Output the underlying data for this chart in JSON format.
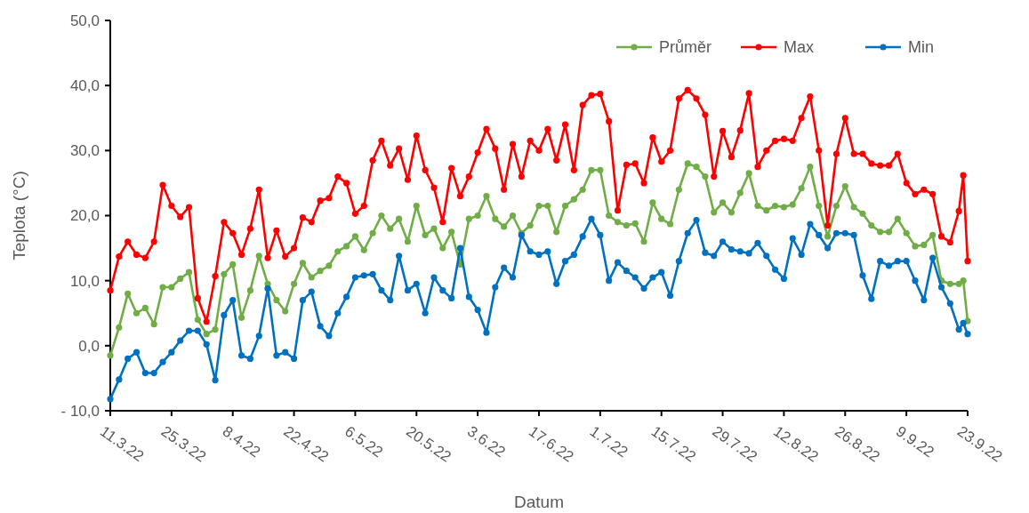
{
  "chart_data": {
    "type": "line",
    "xlabel": "Datum",
    "ylabel": "Teplota (°C)",
    "legend": "top right",
    "marker": "circle",
    "line_style": "solid",
    "x": [
      "--03-11",
      "--03-13",
      "--03-15",
      "--03-17",
      "--03-19",
      "--03-21",
      "--03-23",
      "--03-25",
      "--03-27",
      "--03-29",
      "--03-31",
      "--04-02",
      "--04-04",
      "--04-06",
      "--04-08",
      "--04-10",
      "--04-12",
      "--04-14",
      "--04-16",
      "--04-18",
      "--04-20",
      "--04-22",
      "--04-24",
      "--04-26",
      "--04-28",
      "--04-30",
      "--05-02",
      "--05-04",
      "--05-06",
      "--05-08",
      "--05-10",
      "--05-12",
      "--05-14",
      "--05-16",
      "--05-18",
      "--05-20",
      "--05-22",
      "--05-24",
      "--05-26",
      "--05-28",
      "--05-30",
      "--06-01",
      "--06-03",
      "--06-05",
      "--06-07",
      "--06-09",
      "--06-11",
      "--06-13",
      "--06-15",
      "--06-17",
      "--06-19",
      "--06-21",
      "--06-23",
      "--06-25",
      "--06-27",
      "--06-29",
      "--07-01",
      "--07-03",
      "--07-05",
      "--07-07",
      "--07-09",
      "--07-11",
      "--07-13",
      "--07-15",
      "--07-17",
      "--07-19",
      "--07-21",
      "--07-23",
      "--07-25",
      "--07-27",
      "--07-29",
      "--07-31",
      "--08-02",
      "--08-04",
      "--08-06",
      "--08-08",
      "--08-10",
      "--08-12",
      "--08-14",
      "--08-16",
      "--08-18",
      "--08-20",
      "--08-22",
      "--08-24",
      "--08-26",
      "--08-28",
      "--08-30",
      "--09-01",
      "--09-03",
      "--09-05",
      "--09-07",
      "--09-09",
      "--09-11",
      "--09-13",
      "--09-15",
      "--09-17",
      "--09-19",
      "--09-21",
      "--09-22",
      "--09-23"
    ],
    "series": [
      {
        "name": "Průměr",
        "color": "#70ad47",
        "values": [
          -1.5,
          2.8,
          8.0,
          5.0,
          5.8,
          3.3,
          9.0,
          9.0,
          10.3,
          11.3,
          4.0,
          1.8,
          2.5,
          11.0,
          12.5,
          4.3,
          8.5,
          13.8,
          9.5,
          7.0,
          5.3,
          9.5,
          12.7,
          10.5,
          11.5,
          12.3,
          14.5,
          15.3,
          16.8,
          14.7,
          17.3,
          20.0,
          18.0,
          19.5,
          16.0,
          21.5,
          17.0,
          18.0,
          15.0,
          17.5,
          12.5,
          19.5,
          20.0,
          23.0,
          19.5,
          18.3,
          20.0,
          17.3,
          18.5,
          21.5,
          21.5,
          17.5,
          21.5,
          22.5,
          24.0,
          27.0,
          27.0,
          20.0,
          19.0,
          18.5,
          18.8,
          16.0,
          22.0,
          19.5,
          18.7,
          24.0,
          28.0,
          27.5,
          26.0,
          20.5,
          22.0,
          20.5,
          23.5,
          26.5,
          21.5,
          20.8,
          21.5,
          21.3,
          21.7,
          24.2,
          27.5,
          21.5,
          16.8,
          21.5,
          24.5,
          21.3,
          20.3,
          18.5,
          17.5,
          17.5,
          19.5,
          17.3,
          15.3,
          15.5,
          17.0,
          10.0,
          9.5,
          9.5,
          10.0,
          3.8
        ]
      },
      {
        "name": "Max",
        "color": "#ff0000",
        "values": [
          8.5,
          13.7,
          16.0,
          14.0,
          13.5,
          16.0,
          24.7,
          21.5,
          19.8,
          21.3,
          7.3,
          3.7,
          10.7,
          19.0,
          17.3,
          14.0,
          18.0,
          24.0,
          13.5,
          17.7,
          13.7,
          15.0,
          19.7,
          19.0,
          22.3,
          22.7,
          26.0,
          25.0,
          20.3,
          21.5,
          28.5,
          31.5,
          27.7,
          30.3,
          25.5,
          32.3,
          27.0,
          24.3,
          19.0,
          27.3,
          23.0,
          26.0,
          29.7,
          33.3,
          30.3,
          24.0,
          31.0,
          26.0,
          31.5,
          30.0,
          33.3,
          28.5,
          34.0,
          27.0,
          37.0,
          38.5,
          38.7,
          34.5,
          20.8,
          27.8,
          28.0,
          25.0,
          32.0,
          28.3,
          30.0,
          38.0,
          39.3,
          38.0,
          35.5,
          26.0,
          33.0,
          29.0,
          33.1,
          38.8,
          27.5,
          30.0,
          31.5,
          31.8,
          31.5,
          35.0,
          38.3,
          30.0,
          18.5,
          29.5,
          35.0,
          29.5,
          29.5,
          28.0,
          27.7,
          27.7,
          29.5,
          25.0,
          23.3,
          24.0,
          23.3,
          16.8,
          15.9,
          20.7,
          26.2,
          13.0
        ]
      },
      {
        "name": "Min",
        "color": "#0070c0",
        "values": [
          -8.2,
          -5.2,
          -2.0,
          -1.0,
          -4.2,
          -4.2,
          -2.5,
          -1.0,
          0.8,
          2.3,
          2.3,
          0.2,
          -5.3,
          4.7,
          7.0,
          -1.5,
          -2.0,
          1.5,
          8.8,
          -1.5,
          -1.0,
          -2.0,
          7.0,
          8.3,
          3.0,
          1.5,
          5.0,
          7.5,
          10.5,
          10.8,
          11.0,
          8.5,
          7.0,
          13.8,
          8.5,
          9.5,
          5.0,
          10.5,
          8.5,
          7.3,
          15.0,
          7.5,
          5.5,
          2.0,
          9.0,
          12.0,
          10.5,
          17.0,
          14.5,
          14.0,
          14.5,
          9.5,
          13.0,
          14.0,
          16.8,
          19.5,
          17.0,
          10.0,
          12.8,
          11.5,
          10.5,
          8.8,
          10.5,
          11.3,
          7.7,
          13.0,
          17.3,
          19.3,
          14.3,
          13.8,
          16.0,
          14.8,
          14.5,
          14.2,
          15.8,
          13.8,
          11.7,
          10.3,
          16.5,
          14.0,
          18.7,
          17.0,
          15.0,
          17.3,
          17.3,
          17.0,
          10.8,
          7.2,
          13.0,
          12.3,
          13.0,
          13.0,
          10.0,
          7.0,
          13.5,
          9.0,
          6.5,
          2.5,
          3.5,
          1.8
        ]
      }
    ],
    "xlim": [
      "--03-11",
      "--09-23"
    ],
    "xticks": [
      {
        "value": "--03-11",
        "label": "11.3.22"
      },
      {
        "value": "--03-25",
        "label": "25.3.22"
      },
      {
        "value": "--04-08",
        "label": "8.4.22"
      },
      {
        "value": "--04-22",
        "label": "22.4.22"
      },
      {
        "value": "--05-06",
        "label": "6.5.22"
      },
      {
        "value": "--05-20",
        "label": "20.5.22"
      },
      {
        "value": "--06-03",
        "label": "3.6.22"
      },
      {
        "value": "--06-17",
        "label": "17.6.22"
      },
      {
        "value": "--07-01",
        "label": "1.7.22"
      },
      {
        "value": "--07-15",
        "label": "15.7.22"
      },
      {
        "value": "--07-29",
        "label": "29.7.22"
      },
      {
        "value": "--08-12",
        "label": "12.8.22"
      },
      {
        "value": "--08-26",
        "label": "26.8.22"
      },
      {
        "value": "--09-09",
        "label": "9.9.22"
      },
      {
        "value": "--09-23",
        "label": "23.9.22"
      }
    ],
    "ylim": [
      -10,
      50
    ],
    "yticks": [
      {
        "value": -10,
        "label": "- 10,0"
      },
      {
        "value": 0,
        "label": "0,0"
      },
      {
        "value": 10,
        "label": "10,0"
      },
      {
        "value": 20,
        "label": "20,0"
      },
      {
        "value": 30,
        "label": "30,0"
      },
      {
        "value": 40,
        "label": "40,0"
      },
      {
        "value": 50,
        "label": "50,0"
      }
    ]
  }
}
